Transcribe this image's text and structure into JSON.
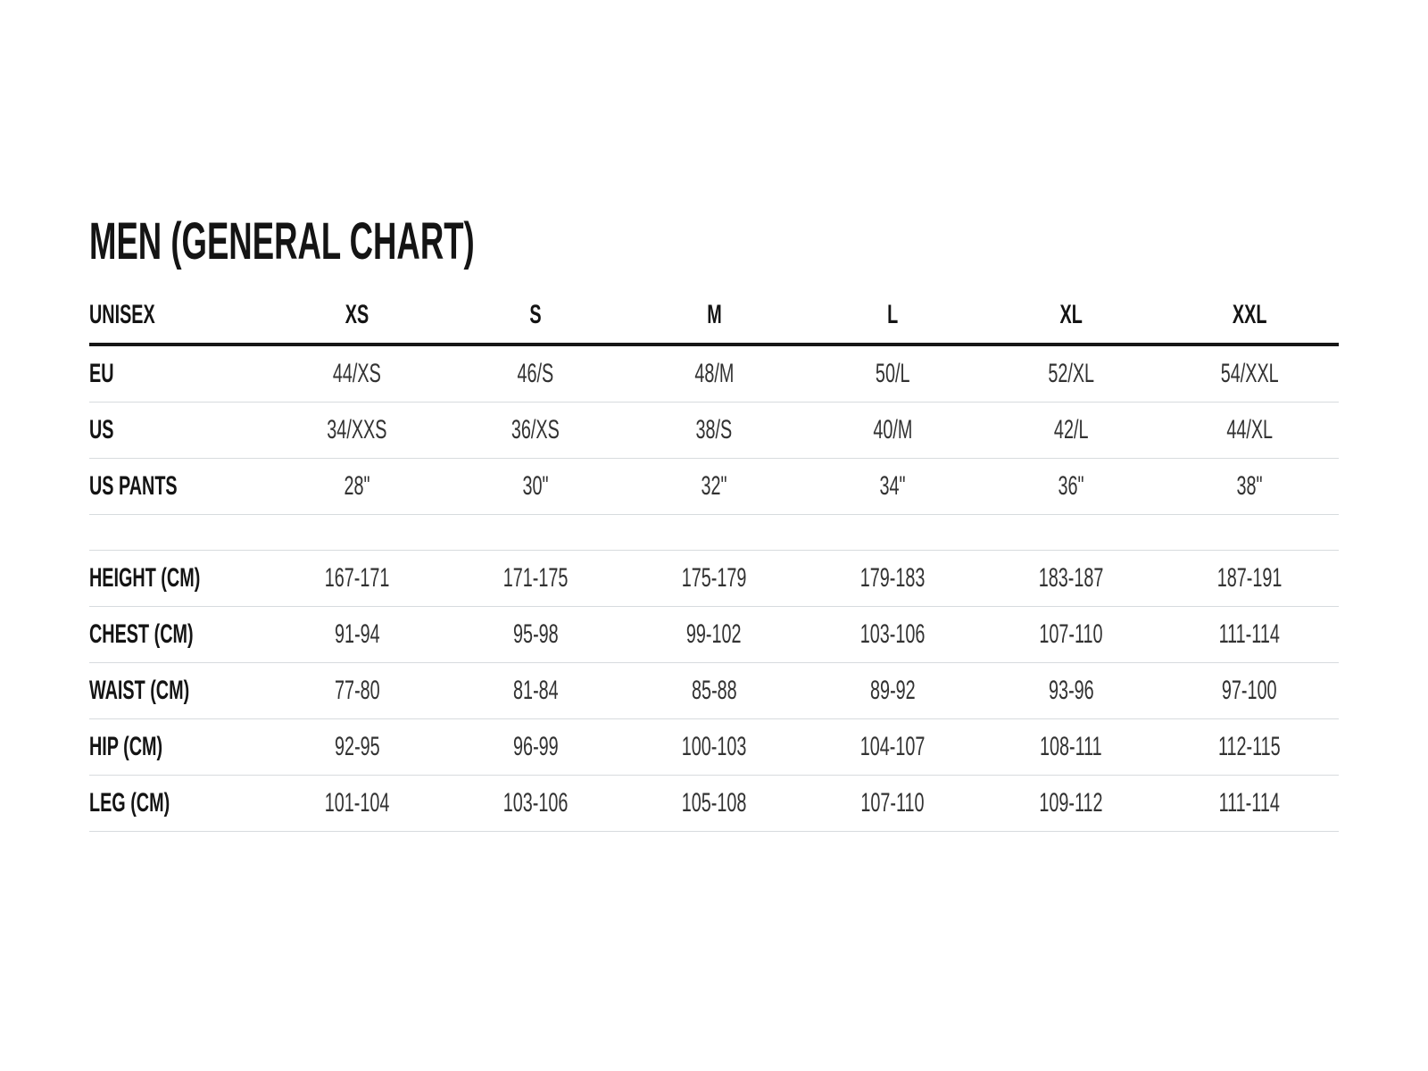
{
  "chart_data": {
    "type": "table",
    "title": "MEN (GENERAL CHART)",
    "columns": [
      "UNISEX",
      "XS",
      "S",
      "M",
      "L",
      "XL",
      "XXL"
    ],
    "rows": [
      [
        "EU",
        "44/XS",
        "46/S",
        "48/M",
        "50/L",
        "52/XL",
        "54/XXL"
      ],
      [
        "US",
        "34/XXS",
        "36/XS",
        "38/S",
        "40/M",
        "42/L",
        "44/XL"
      ],
      [
        "US PANTS",
        "28\"",
        "30\"",
        "32\"",
        "34\"",
        "36\"",
        "38\""
      ],
      [
        "HEIGHT (CM)",
        "167-171",
        "171-175",
        "175-179",
        "179-183",
        "183-187",
        "187-191"
      ],
      [
        "CHEST (CM)",
        "91-94",
        "95-98",
        "99-102",
        "103-106",
        "107-110",
        "111-114"
      ],
      [
        "WAIST (CM)",
        "77-80",
        "81-84",
        "85-88",
        "89-92",
        "93-96",
        "97-100"
      ],
      [
        "HIP (CM)",
        "92-95",
        "96-99",
        "100-103",
        "104-107",
        "108-111",
        "112-115"
      ],
      [
        "LEG (CM)",
        "101-104",
        "103-106",
        "105-108",
        "107-110",
        "109-112",
        "111-114"
      ]
    ],
    "layout": {
      "header_rule": "thick",
      "row_rules": "thin",
      "spacer_after_row_index": 2
    }
  },
  "colors": {
    "background": "#ffffff",
    "label_text": "#141414",
    "value_text": "#323232",
    "rule_thick": "#161616",
    "rule_thin": "#d7dbde"
  }
}
